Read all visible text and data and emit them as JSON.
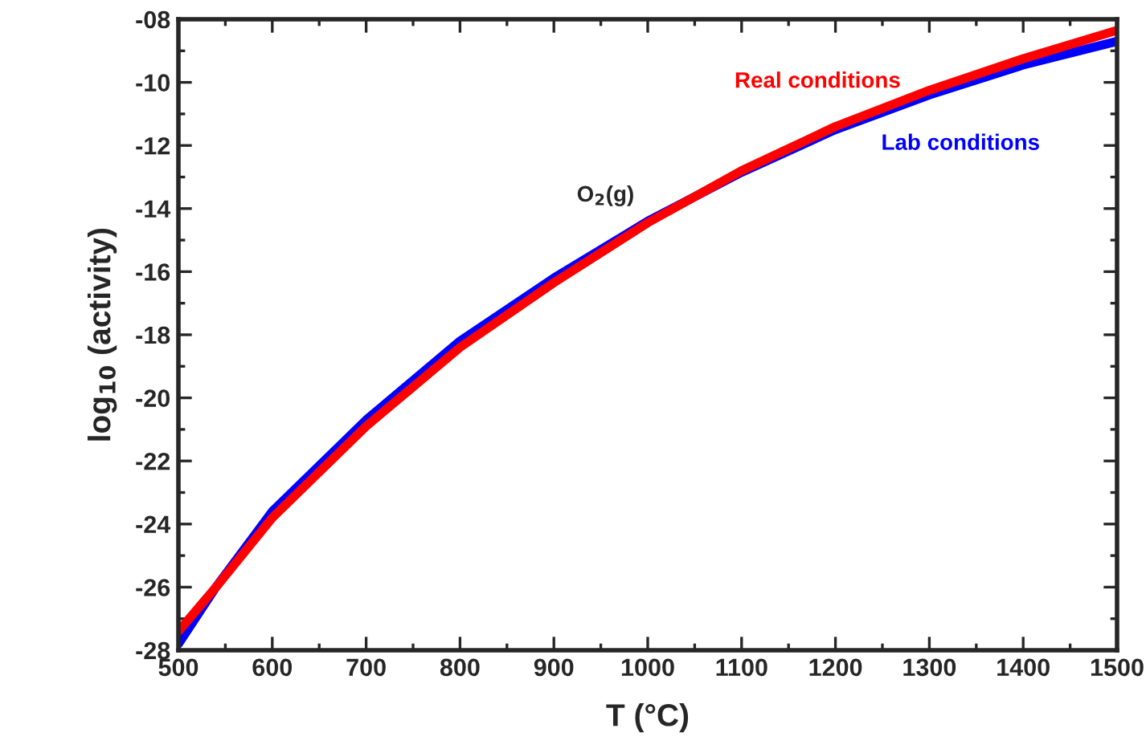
{
  "chart_data": {
    "type": "line",
    "xlabel": "T (°C)",
    "ylabel": "log$_{10}$ (activity)",
    "x": [
      500,
      540,
      600,
      700,
      800,
      900,
      1000,
      1100,
      1200,
      1300,
      1400,
      1500
    ],
    "series": [
      {
        "name": "Lab conditions",
        "color": "#0000ff",
        "values": [
          -27.8,
          -26.0,
          -23.6,
          -20.7,
          -18.2,
          -16.2,
          -14.4,
          -12.85,
          -11.5,
          -10.4,
          -9.45,
          -8.7
        ]
      },
      {
        "name": "Real conditions",
        "color": "#ff0000",
        "values": [
          -27.4,
          -26.0,
          -23.8,
          -20.9,
          -18.4,
          -16.35,
          -14.45,
          -12.8,
          -11.4,
          -10.25,
          -9.25,
          -8.35
        ]
      }
    ],
    "annotations": [
      "O$_{2}$(g)"
    ],
    "xlim": [
      500,
      1500
    ],
    "xticks": [
      500,
      600,
      700,
      800,
      900,
      1000,
      1100,
      1200,
      1300,
      1400,
      1500
    ],
    "ylim": [
      -28,
      -8
    ],
    "yticks": [
      {
        "value": -28,
        "label": "-28"
      },
      {
        "value": -26,
        "label": "-26"
      },
      {
        "value": -24,
        "label": "-24"
      },
      {
        "value": -22,
        "label": "-22"
      },
      {
        "value": -20,
        "label": "-20"
      },
      {
        "value": -18,
        "label": "-18"
      },
      {
        "value": -16,
        "label": "-16"
      },
      {
        "value": -14,
        "label": "-14"
      },
      {
        "value": -12,
        "label": "-12"
      },
      {
        "value": -10,
        "label": "-10"
      },
      {
        "value": -8,
        "label": "-08"
      }
    ],
    "grid": false,
    "legend": false,
    "line_style": "solid",
    "marker": "none"
  }
}
